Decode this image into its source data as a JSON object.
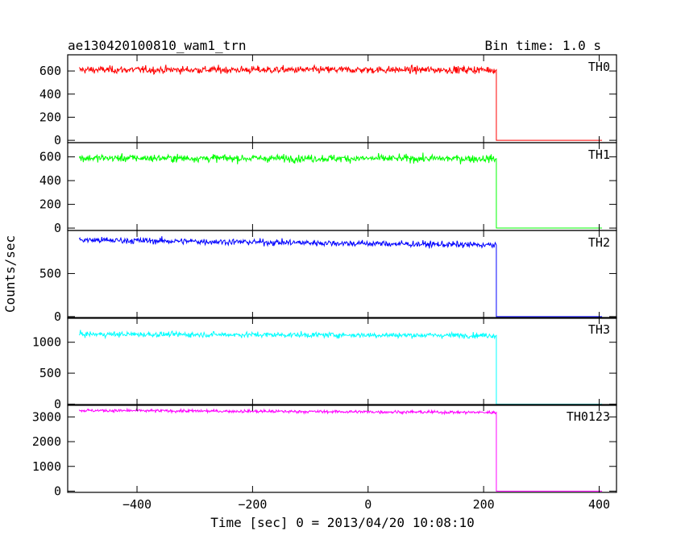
{
  "chart_data": {
    "type": "line",
    "title": "ae130420100810_wam1_trn",
    "subtitle": "Bin time: 1.0 s",
    "xlabel": "Time [sec] 0 = 2013/04/20 10:08:10",
    "ylabel": "Counts/sec",
    "xlim": [
      -520,
      430
    ],
    "x_ticks": [
      -400,
      -200,
      0,
      200,
      400
    ],
    "x_tick_labels": [
      "−400",
      "−200",
      "0",
      "200",
      "400"
    ],
    "data_x_range": [
      -500,
      220
    ],
    "drop_x": 222,
    "tail_x_end": 405,
    "grid": false,
    "legend": "none",
    "panels": [
      {
        "name": "TH0",
        "color": "#ff0000",
        "ylim": [
          -20,
          740
        ],
        "yticks": [
          0,
          200,
          400,
          600
        ],
        "ytick_labels": [
          "0",
          "200",
          "400",
          "600"
        ],
        "mean_start": 610,
        "mean_end": 610,
        "noise": 28,
        "tail_value": 0
      },
      {
        "name": "TH1",
        "color": "#00ff00",
        "ylim": [
          -20,
          720
        ],
        "yticks": [
          0,
          200,
          400,
          600
        ],
        "ytick_labels": [
          "0",
          "200",
          "400",
          "600"
        ],
        "mean_start": 590,
        "mean_end": 585,
        "noise": 28,
        "tail_value": 0
      },
      {
        "name": "TH2",
        "color": "#0000ff",
        "ylim": [
          -20,
          1000
        ],
        "yticks": [
          0,
          500
        ],
        "ytick_labels": [
          "0",
          "500"
        ],
        "mean_start": 890,
        "mean_end": 830,
        "noise": 32,
        "tail_value": 0
      },
      {
        "name": "TH3",
        "color": "#00ffff",
        "ylim": [
          -20,
          1400
        ],
        "yticks": [
          0,
          500,
          1000
        ],
        "ytick_labels": [
          "0",
          "500",
          "1000"
        ],
        "mean_start": 1130,
        "mean_end": 1110,
        "noise": 38,
        "tail_value": 0
      },
      {
        "name": "TH0123",
        "color": "#ff00ff",
        "ylim": [
          -50,
          3500
        ],
        "yticks": [
          0,
          1000,
          2000,
          3000
        ],
        "ytick_labels": [
          "0",
          "1000",
          "2000",
          "3000"
        ],
        "mean_start": 3260,
        "mean_end": 3180,
        "noise": 55,
        "tail_value": 0
      }
    ]
  }
}
